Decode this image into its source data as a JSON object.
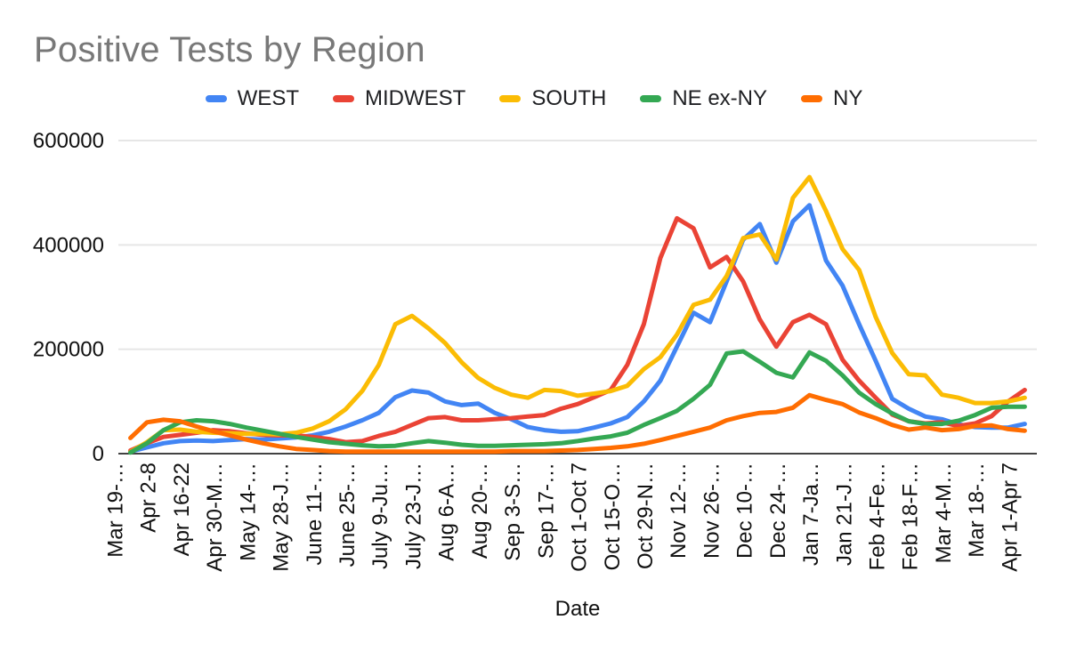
{
  "chart_data": {
    "type": "line",
    "title": "Positive Tests by Region",
    "xlabel": "Date",
    "ylabel": "",
    "ylim": [
      0,
      600000
    ],
    "yticks": [
      0,
      200000,
      400000,
      600000
    ],
    "ytick_labels": [
      "0",
      "200000",
      "400000",
      "600000"
    ],
    "x_tick_labels": [
      "Mar 19-…",
      "Apr 2-8",
      "Apr 16-22",
      "Apr 30-M…",
      "May 14-…",
      "May 28-J…",
      "June 11-…",
      "June 25-…",
      "July 9-Ju…",
      "July 23-J…",
      "Aug 6-A…",
      "Aug 20-…",
      "Sep 3-S…",
      "Sep 17-…",
      "Oct 1-Oct 7",
      "Oct 15-O…",
      "Oct 29-N…",
      "Nov 12-…",
      "Nov 26-…",
      "Dec 10-…",
      "Dec 24-…",
      "Jan 7-Ja…",
      "Jan 21-J…",
      "Feb 4-Fe…",
      "Feb 18-F…",
      "Mar 4-M…",
      "Mar 18-…",
      "Apr 1-Apr 7"
    ],
    "x_tick_step": 2,
    "n_points": 55,
    "grid": true,
    "legend_position": "top",
    "axis_text_color": "#111111",
    "gridline_color": "#e6e6e6",
    "baseline_color": "#424242",
    "series": [
      {
        "name": "WEST",
        "color": "#4285F4",
        "values": [
          4000,
          12000,
          20000,
          24000,
          25000,
          24000,
          26000,
          28000,
          27000,
          29000,
          31000,
          35000,
          42000,
          52000,
          64000,
          78000,
          108000,
          121000,
          117000,
          100000,
          93000,
          96000,
          78000,
          66000,
          51000,
          45000,
          42000,
          43000,
          50000,
          58000,
          70000,
          100000,
          140000,
          205000,
          270000,
          252000,
          330000,
          410000,
          440000,
          366000,
          445000,
          476000,
          370000,
          322000,
          248000,
          178000,
          105000,
          86000,
          71000,
          66000,
          56000,
          51000,
          50000,
          50000,
          57000
        ]
      },
      {
        "name": "MIDWEST",
        "color": "#EA4335",
        "values": [
          6000,
          20000,
          32000,
          36000,
          40000,
          45000,
          43000,
          39000,
          36000,
          35000,
          35000,
          32000,
          28000,
          22000,
          24000,
          34000,
          42000,
          55000,
          68000,
          70000,
          64000,
          64000,
          66000,
          68000,
          71000,
          74000,
          86000,
          95000,
          108000,
          122000,
          170000,
          248000,
          375000,
          451000,
          432000,
          357000,
          377000,
          330000,
          257000,
          205000,
          252000,
          266000,
          248000,
          180000,
          140000,
          107000,
          75000,
          62000,
          58000,
          60000,
          53000,
          58000,
          72000,
          100000,
          122000
        ]
      },
      {
        "name": "SOUTH",
        "color": "#FBBC04",
        "values": [
          3000,
          22000,
          45000,
          46000,
          42000,
          40000,
          39000,
          38000,
          38000,
          37000,
          40000,
          48000,
          62000,
          85000,
          120000,
          170000,
          248000,
          264000,
          240000,
          212000,
          175000,
          145000,
          126000,
          113000,
          107000,
          122000,
          120000,
          111000,
          115000,
          120000,
          130000,
          162000,
          185000,
          228000,
          285000,
          295000,
          340000,
          413000,
          420000,
          372000,
          490000,
          530000,
          465000,
          392000,
          352000,
          262000,
          193000,
          152000,
          150000,
          113000,
          107000,
          97000,
          97000,
          100000,
          107000
        ]
      },
      {
        "name": "NE ex-NY",
        "color": "#34A853",
        "values": [
          2000,
          20000,
          45000,
          60000,
          64000,
          62000,
          57000,
          50000,
          44000,
          38000,
          32000,
          27000,
          22000,
          19000,
          16000,
          14000,
          15000,
          20000,
          24000,
          21000,
          17000,
          15000,
          15000,
          16000,
          17000,
          18000,
          20000,
          24000,
          29000,
          33000,
          40000,
          55000,
          68000,
          82000,
          105000,
          132000,
          192000,
          196000,
          176000,
          155000,
          146000,
          194000,
          178000,
          150000,
          117000,
          95000,
          77000,
          62000,
          57000,
          57000,
          63000,
          74000,
          88000,
          90000,
          90000
        ]
      },
      {
        "name": "NY",
        "color": "#FF6D01",
        "values": [
          30000,
          60000,
          65000,
          62000,
          52000,
          43000,
          35000,
          27000,
          20000,
          14000,
          9000,
          7000,
          5000,
          4000,
          4000,
          4000,
          4000,
          4000,
          4000,
          4000,
          4000,
          4000,
          4000,
          5000,
          5000,
          5000,
          6000,
          7000,
          9000,
          11000,
          14000,
          19000,
          26000,
          34000,
          42000,
          50000,
          64000,
          72000,
          78000,
          80000,
          88000,
          112000,
          103000,
          95000,
          79000,
          68000,
          55000,
          46000,
          50000,
          45000,
          47000,
          53000,
          54000,
          47000,
          44000
        ]
      }
    ]
  }
}
